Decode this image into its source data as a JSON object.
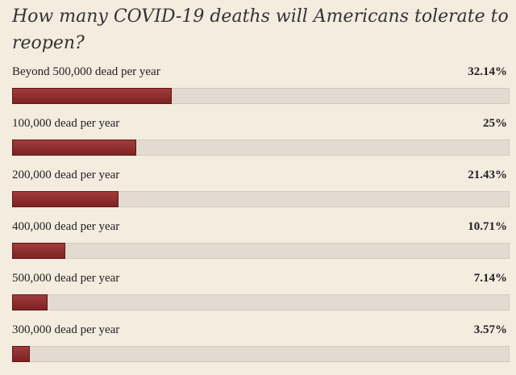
{
  "poll": {
    "title": "How many COVID-19 deaths will Americans tolerate to reopen?"
  },
  "chart_data": {
    "type": "bar",
    "orientation": "horizontal",
    "title": "How many COVID-19 deaths will Americans tolerate to reopen?",
    "categories": [
      "Beyond 500,000 dead per year",
      "100,000 dead per year",
      "200,000 dead per year",
      "400,000 dead per year",
      "500,000 dead per year",
      "300,000 dead per year"
    ],
    "values": [
      32.14,
      25,
      21.43,
      10.71,
      7.14,
      3.57
    ],
    "value_labels": [
      "32.14%",
      "25%",
      "21.43%",
      "10.71%",
      "7.14%",
      "3.57%"
    ],
    "xlim": [
      0,
      100
    ],
    "grid": false,
    "colors": {
      "bar": "#8b2a2a",
      "track": "#e3dbd0",
      "background": "#f4ecdf"
    }
  }
}
